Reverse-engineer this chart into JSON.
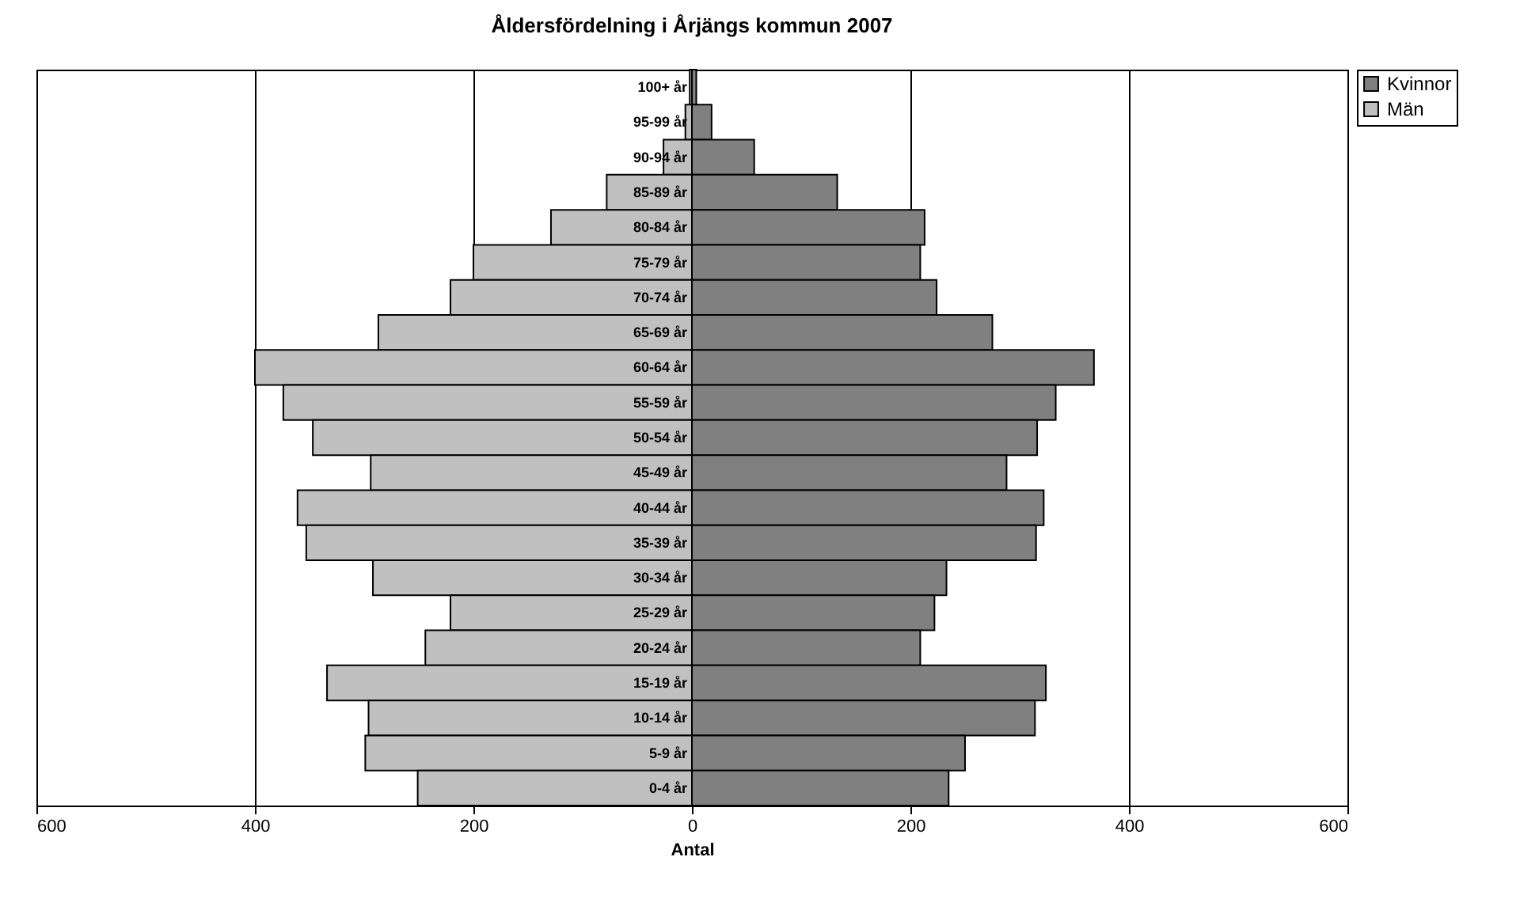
{
  "chart_data": {
    "type": "bar",
    "orientation": "horizontal",
    "stacked": true,
    "title": "Åldersfördelning i Årjängs kommun 2007",
    "xlabel": "Antal",
    "categories": [
      "100+ år",
      "95-99 år",
      "90-94 år",
      "85-89 år",
      "80-84 år",
      "75-79 år",
      "70-74 år",
      "65-69 år",
      "60-64 år",
      "55-59 år",
      "50-54 år",
      "45-49 år",
      "40-44 år",
      "35-39 år",
      "30-34 år",
      "25-29 år",
      "20-24 år",
      "15-19 år",
      "10-14 år",
      "5-9 år",
      "0-4 år"
    ],
    "series": [
      {
        "name": "Kvinnor",
        "color": "#808080",
        "values": [
          4,
          18,
          57,
          133,
          213,
          209,
          224,
          275,
          368,
          333,
          316,
          288,
          322,
          315,
          233,
          222,
          209,
          324,
          314,
          250,
          235
        ]
      },
      {
        "name": "Män",
        "color": "#c0c0c0",
        "values": [
          -2,
          -6,
          -26,
          -78,
          -129,
          -200,
          -221,
          -287,
          -400,
          -374,
          -347,
          -294,
          -361,
          -353,
          -292,
          -221,
          -244,
          -334,
          -296,
          -299,
          -251
        ]
      }
    ],
    "xlim": [
      -600,
      600
    ],
    "xticks": [
      {
        "value": -600,
        "label": "600"
      },
      {
        "value": -400,
        "label": "400"
      },
      {
        "value": -200,
        "label": "200"
      },
      0,
      200,
      400,
      600
    ],
    "grid": "x",
    "legend": "right"
  }
}
